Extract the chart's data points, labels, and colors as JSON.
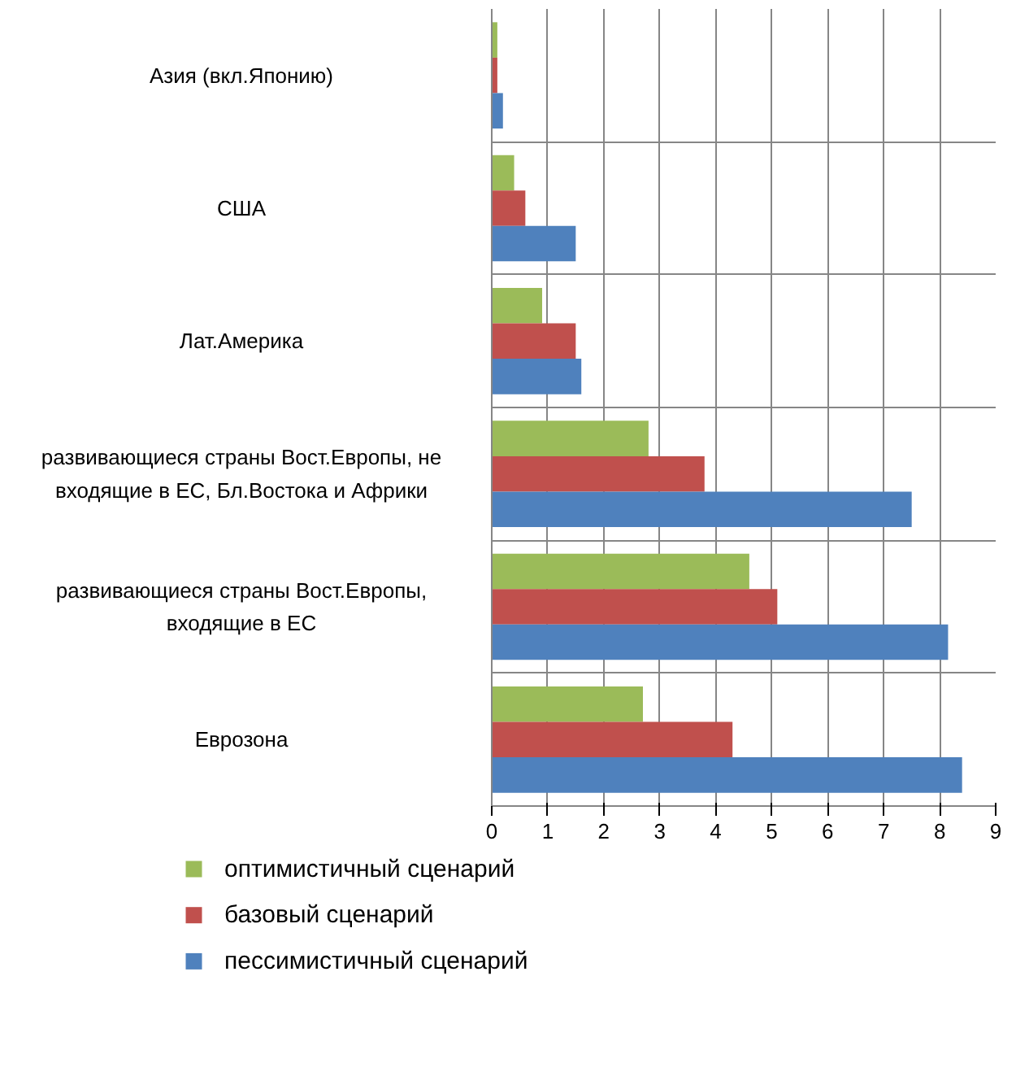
{
  "chart_data": {
    "type": "bar",
    "orientation": "horizontal",
    "categories": [
      "Азия (вкл.Японию)",
      "США",
      "Лат.Америка",
      "развивающиеся страны Вост.Европы, не входящие в ЕС, Бл.Востока и Африки",
      "развивающиеся страны Вост.Европы, входящие в ЕС",
      "Еврозона"
    ],
    "series": [
      {
        "name": "оптимистичный сценарий",
        "color": "#9bbb59",
        "values": [
          0.1,
          0.4,
          0.9,
          2.8,
          4.6,
          2.7
        ]
      },
      {
        "name": "базовый сценарий",
        "color": "#c0504d",
        "values": [
          0.1,
          0.6,
          1.5,
          3.8,
          5.1,
          4.3
        ]
      },
      {
        "name": "пессимистичный сценарий",
        "color": "#4f81bd",
        "values": [
          0.2,
          1.5,
          1.6,
          7.5,
          8.15,
          8.4
        ]
      }
    ],
    "xlim": [
      0,
      9
    ],
    "xticks": [
      0,
      1,
      2,
      3,
      4,
      5,
      6,
      7,
      8,
      9
    ],
    "grid": true,
    "legend": "bottom"
  }
}
